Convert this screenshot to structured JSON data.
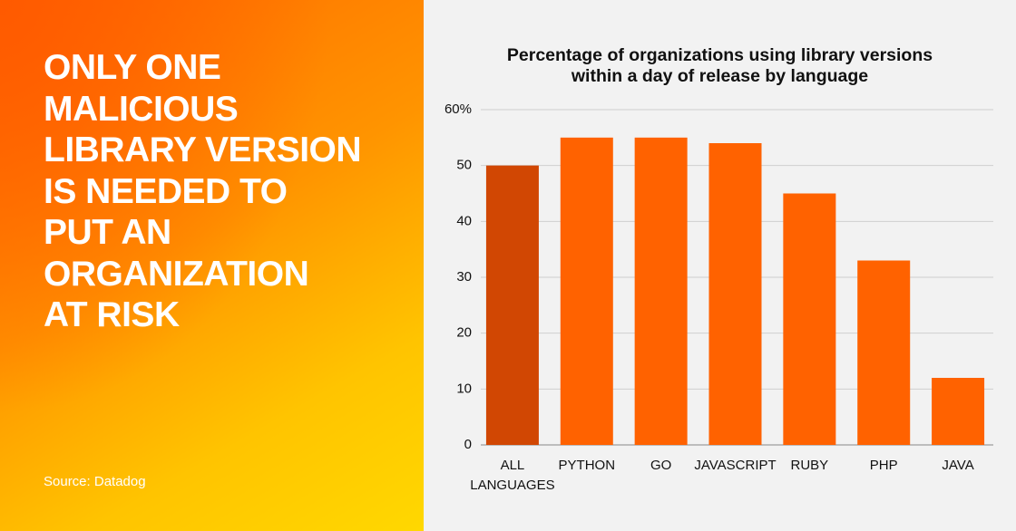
{
  "headline": [
    "ONLY ONE",
    "MALICIOUS",
    "LIBRARY VERSION",
    "IS NEEDED TO",
    "PUT AN",
    "ORGANIZATION",
    "AT RISK"
  ],
  "source": "Source: Datadog",
  "chart_data": {
    "type": "bar",
    "title": [
      "Percentage of organizations using library versions",
      "within a day of release by language"
    ],
    "categories": [
      "ALL LANGUAGES",
      "PYTHON",
      "GO",
      "JAVASCRIPT",
      "RUBY",
      "PHP",
      "JAVA"
    ],
    "values": [
      50,
      55,
      55,
      54,
      45,
      33,
      12
    ],
    "colors": [
      "#d14703",
      "#ff6200",
      "#ff6200",
      "#ff6200",
      "#ff6200",
      "#ff6200",
      "#ff6200"
    ],
    "ylim": [
      0,
      60
    ],
    "yticks": [
      0,
      10,
      20,
      30,
      40,
      50,
      {
        "value": 60,
        "label": "60%"
      }
    ],
    "grid": true
  }
}
